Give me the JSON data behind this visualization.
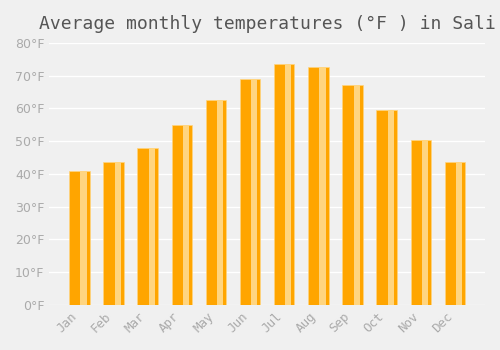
{
  "title": "Average monthly temperatures (°F ) in Sali",
  "months": [
    "Jan",
    "Feb",
    "Mar",
    "Apr",
    "May",
    "Jun",
    "Jul",
    "Aug",
    "Sep",
    "Oct",
    "Nov",
    "Dec"
  ],
  "values": [
    41,
    43.5,
    48,
    55,
    62.5,
    69,
    73.5,
    72.5,
    67,
    59.5,
    50.5,
    43.5
  ],
  "bar_color": "#FFA500",
  "bar_edge_color": "#FFD580",
  "background_color": "#f0f0f0",
  "ylim": [
    0,
    80
  ],
  "yticks": [
    0,
    10,
    20,
    30,
    40,
    50,
    60,
    70,
    80
  ],
  "title_fontsize": 13,
  "tick_fontsize": 9,
  "grid_color": "#ffffff"
}
